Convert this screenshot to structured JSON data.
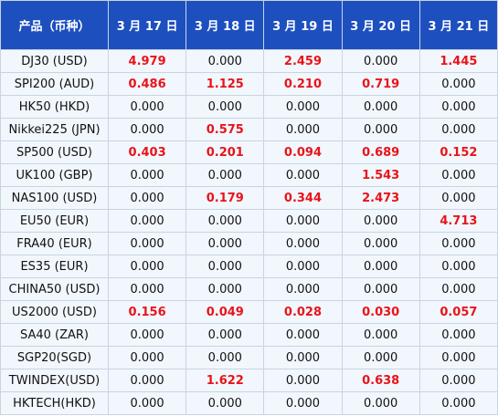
{
  "table": {
    "header": [
      "产品（币种）",
      "3 月 17 日",
      "3 月 18 日",
      "3 月 19 日",
      "3 月 20 日",
      "3 月 21 日"
    ],
    "rows": [
      [
        "DJ30 (USD)",
        "4.979",
        "0.000",
        "2.459",
        "0.000",
        "1.445"
      ],
      [
        "SPI200 (AUD)",
        "0.486",
        "1.125",
        "0.210",
        "0.719",
        "0.000"
      ],
      [
        "HK50 (HKD)",
        "0.000",
        "0.000",
        "0.000",
        "0.000",
        "0.000"
      ],
      [
        "Nikkei225 (JPN)",
        "0.000",
        "0.575",
        "0.000",
        "0.000",
        "0.000"
      ],
      [
        "SP500 (USD)",
        "0.403",
        "0.201",
        "0.094",
        "0.689",
        "0.152"
      ],
      [
        "UK100 (GBP)",
        "0.000",
        "0.000",
        "0.000",
        "1.543",
        "0.000"
      ],
      [
        "NAS100 (USD)",
        "0.000",
        "0.179",
        "0.344",
        "2.473",
        "0.000"
      ],
      [
        "EU50 (EUR)",
        "0.000",
        "0.000",
        "0.000",
        "0.000",
        "4.713"
      ],
      [
        "FRA40 (EUR)",
        "0.000",
        "0.000",
        "0.000",
        "0.000",
        "0.000"
      ],
      [
        "ES35 (EUR)",
        "0.000",
        "0.000",
        "0.000",
        "0.000",
        "0.000"
      ],
      [
        "CHINA50 (USD)",
        "0.000",
        "0.000",
        "0.000",
        "0.000",
        "0.000"
      ],
      [
        "US2000 (USD)",
        "0.156",
        "0.049",
        "0.028",
        "0.030",
        "0.057"
      ],
      [
        "SA40 (ZAR)",
        "0.000",
        "0.000",
        "0.000",
        "0.000",
        "0.000"
      ],
      [
        "SGP20(SGD)",
        "0.000",
        "0.000",
        "0.000",
        "0.000",
        "0.000"
      ],
      [
        "TWINDEX(USD)",
        "0.000",
        "1.622",
        "0.000",
        "0.638",
        "0.000"
      ],
      [
        "HKTECH(HKD)",
        "0.000",
        "0.000",
        "0.000",
        "0.000",
        "0.000"
      ]
    ],
    "highlight_color": "#e8141b"
  }
}
